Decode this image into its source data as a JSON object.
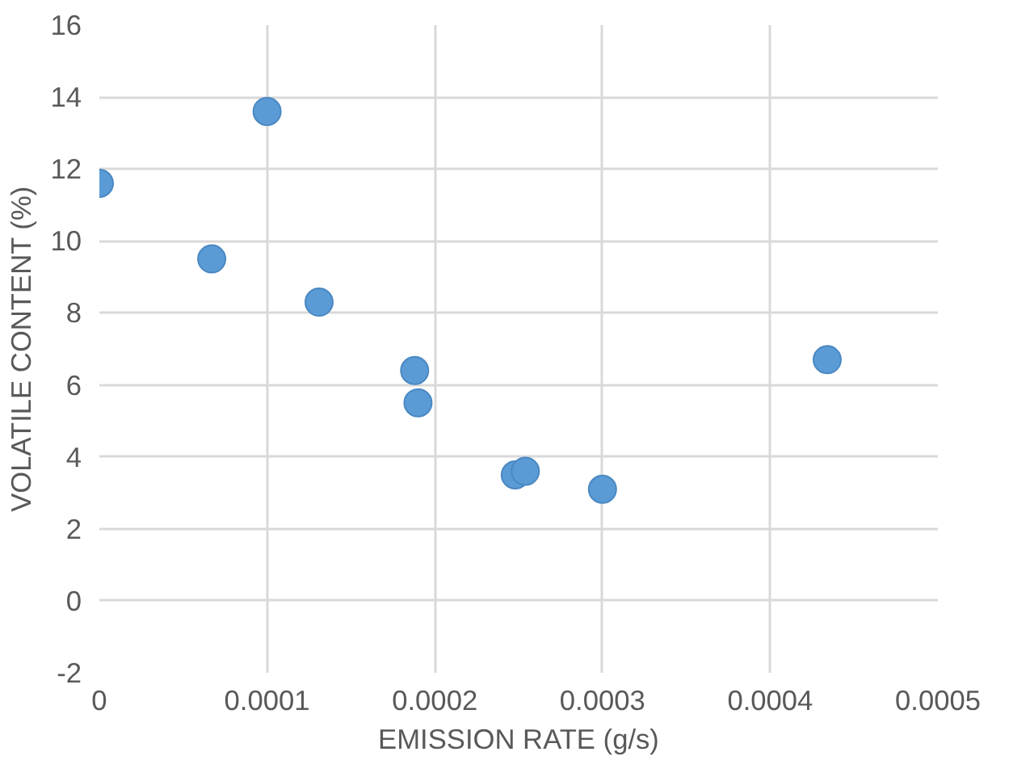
{
  "chart_data": {
    "type": "scatter",
    "xlabel": "EMISSION RATE (g/s)",
    "ylabel": "VOLATILE CONTENT (%)",
    "x": [
      0,
      0.0001,
      6.7e-05,
      0.000131,
      0.000188,
      0.00019,
      0.000248,
      0.000254,
      0.0003,
      0.000434
    ],
    "series": [
      {
        "color": "#5b9bd5",
        "values": [
          11.6,
          13.6,
          9.5,
          8.3,
          6.4,
          5.5,
          3.5,
          3.6,
          3.1,
          6.7
        ]
      }
    ],
    "xlim": [
      0,
      0.0005
    ],
    "ylim": [
      -2,
      16
    ],
    "xticks": [
      0,
      0.0001,
      0.0002,
      0.0003,
      0.0004,
      0.0005
    ],
    "yticks": [
      -2,
      0,
      2,
      4,
      6,
      8,
      10,
      12,
      14,
      16
    ],
    "grid": true,
    "marker": "circle"
  }
}
